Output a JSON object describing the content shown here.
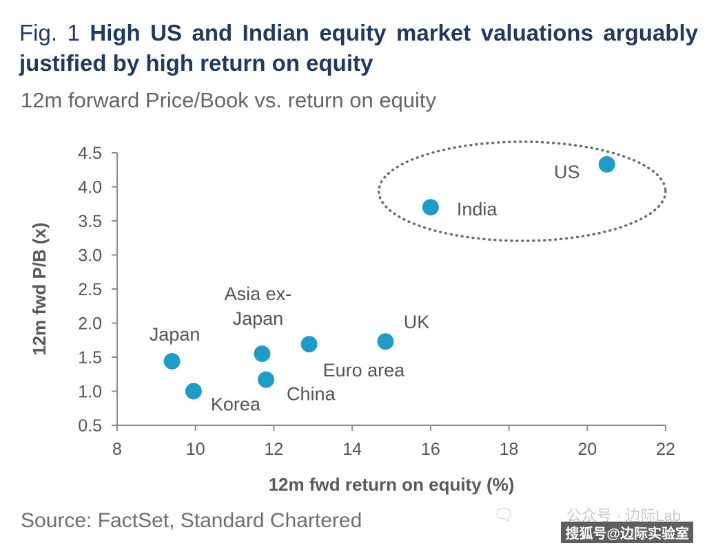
{
  "header": {
    "fig_label": "Fig. 1",
    "title": "High US and Indian equity market valuations arguably justified by high return on equity",
    "subtitle": "12m forward Price/Book vs. return on equity"
  },
  "footer": {
    "source": "Source: FactSet, Standard Chartered",
    "watermark_line1": "公众号 · 边际Lab",
    "watermark_line2": "搜狐号@边际实验室"
  },
  "colors": {
    "point": "#1e9cc7",
    "axis": "#8c8c8c",
    "ellipse": "#6b6b6b"
  },
  "chart_data": {
    "type": "scatter",
    "title": "High US and Indian equity market valuations arguably justified by high return on equity",
    "subtitle": "12m forward Price/Book vs. return on equity",
    "xlabel": "12m fwd return on equity (%)",
    "ylabel": "12m fwd P/B (x)",
    "xlim": [
      8,
      22
    ],
    "ylim": [
      0.5,
      4.5
    ],
    "xticks": [
      8,
      10,
      12,
      14,
      16,
      18,
      20,
      22
    ],
    "yticks": [
      "0.5",
      "1.0",
      "1.5",
      "2.0",
      "2.5",
      "3.0",
      "3.5",
      "4.0",
      "4.5"
    ],
    "grid": false,
    "points": [
      {
        "name": "US",
        "x": 20.5,
        "y": 4.33,
        "label_lines": [
          "US"
        ]
      },
      {
        "name": "India",
        "x": 16.0,
        "y": 3.7,
        "label_lines": [
          "India"
        ]
      },
      {
        "name": "UK",
        "x": 14.85,
        "y": 1.73,
        "label_lines": [
          "UK"
        ]
      },
      {
        "name": "Euro area",
        "x": 12.9,
        "y": 1.69,
        "label_lines": [
          "Euro area"
        ]
      },
      {
        "name": "Asia ex-Japan",
        "x": 11.7,
        "y": 1.55,
        "label_lines": [
          "Asia ex-",
          "Japan"
        ]
      },
      {
        "name": "China",
        "x": 11.8,
        "y": 1.17,
        "label_lines": [
          "China"
        ]
      },
      {
        "name": "Japan",
        "x": 9.4,
        "y": 1.44,
        "label_lines": [
          "Japan"
        ]
      },
      {
        "name": "Korea",
        "x": 9.95,
        "y": 1.0,
        "label_lines": [
          "Korea"
        ]
      }
    ],
    "annotation": "dotted ellipse around US and India"
  }
}
